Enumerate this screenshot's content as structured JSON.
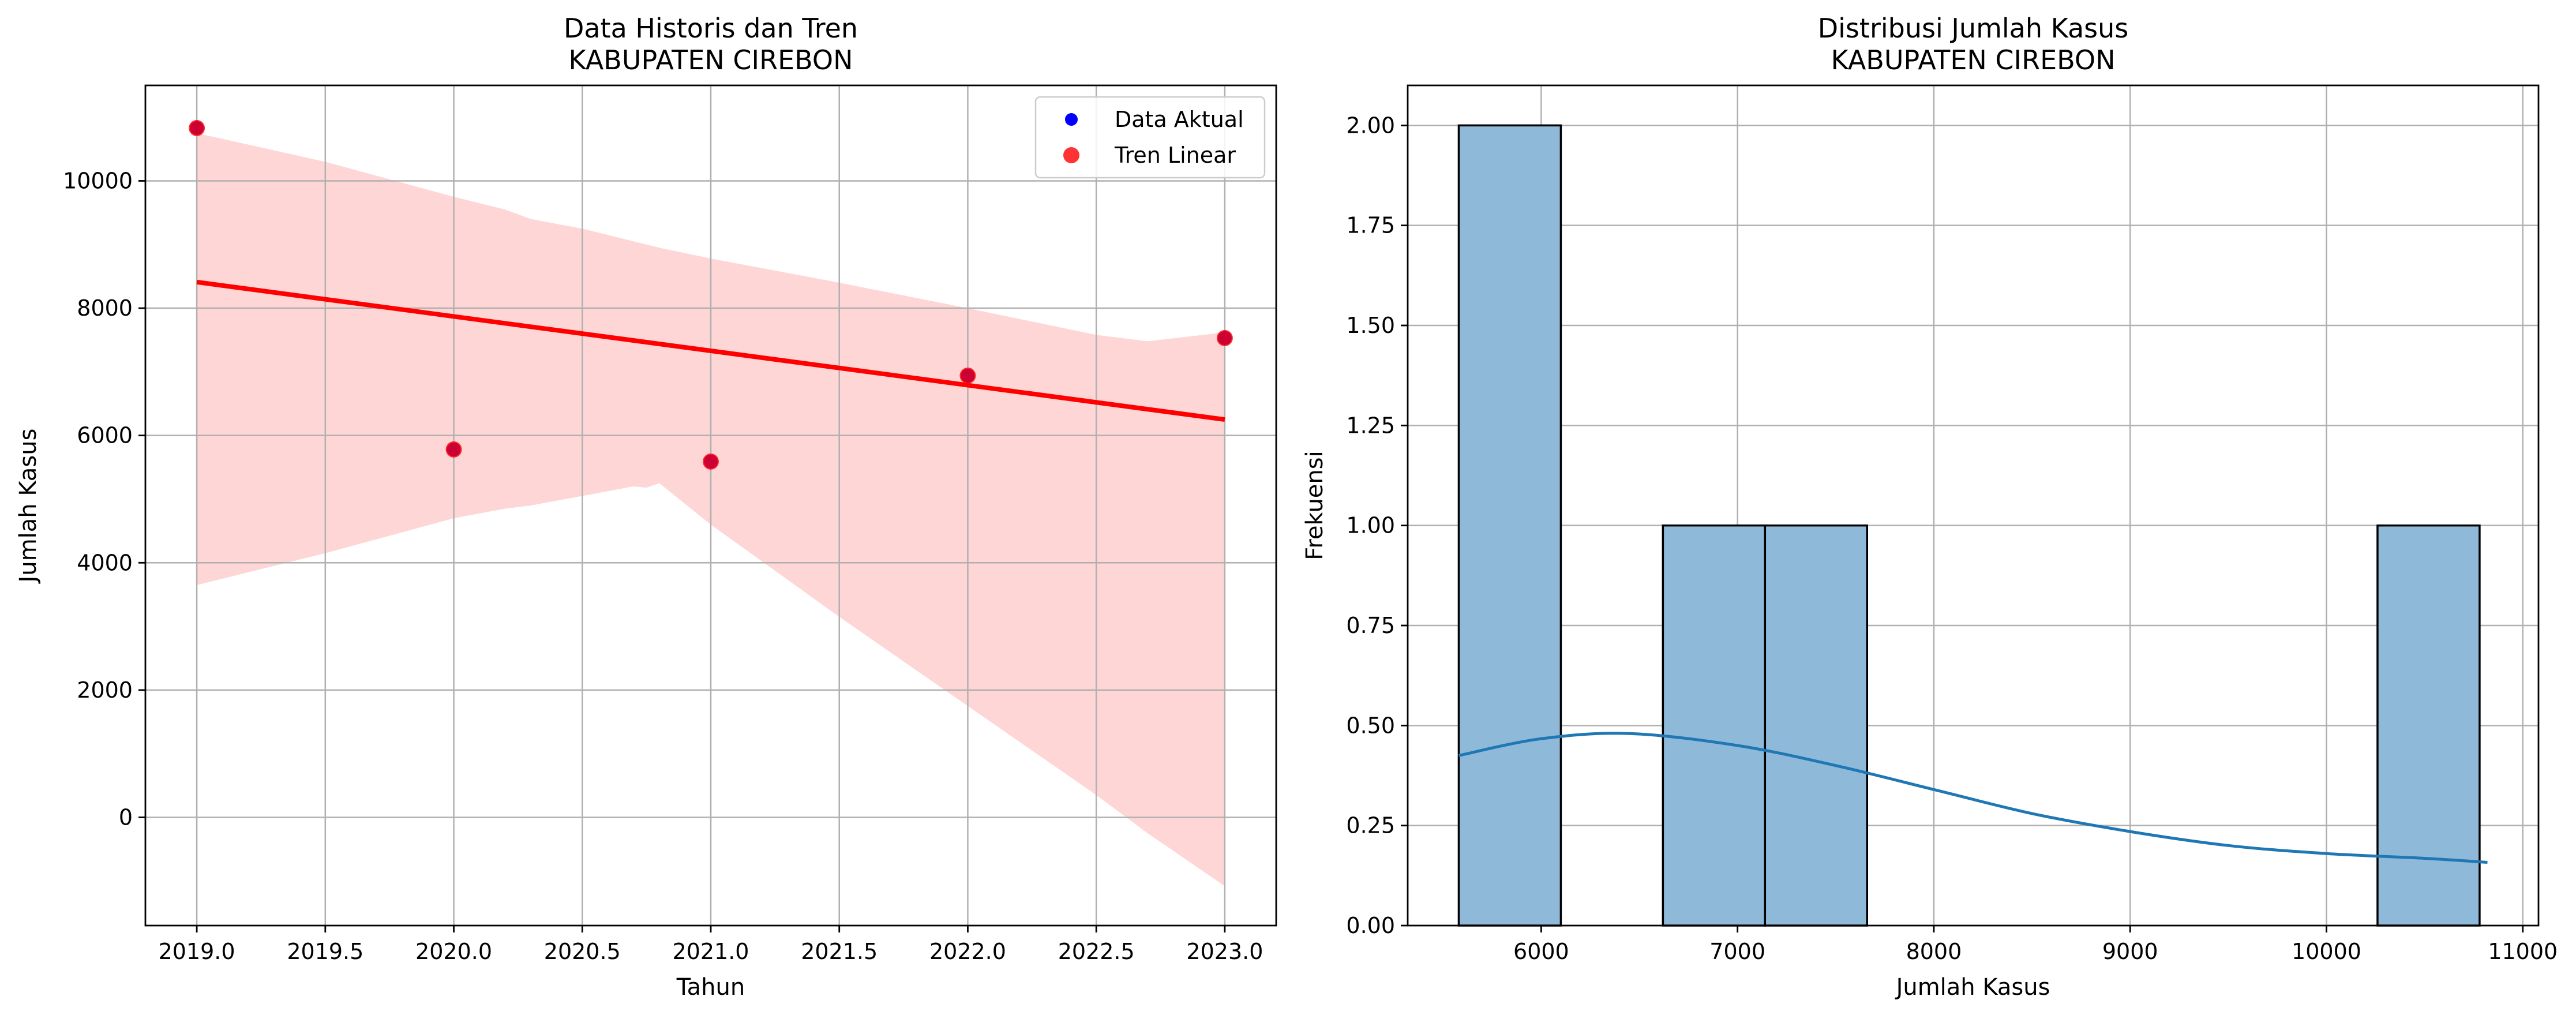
{
  "chart_data": [
    {
      "type": "scatter",
      "title": "Data Historis dan Tren",
      "subtitle": "KABUPATEN CIREBON",
      "xlabel": "Tahun",
      "ylabel": "Jumlah Kasus",
      "xlim": [
        2018.8,
        2023.2
      ],
      "ylim": [
        -1700,
        11500
      ],
      "x_ticks": [
        2019.0,
        2019.5,
        2020.0,
        2020.5,
        2021.0,
        2021.5,
        2022.0,
        2022.5,
        2023.0
      ],
      "x_tick_labels": [
        "2019.0",
        "2019.5",
        "2020.0",
        "2020.5",
        "2021.0",
        "2021.5",
        "2022.0",
        "2022.5",
        "2023.0"
      ],
      "y_ticks": [
        0,
        2000,
        4000,
        6000,
        8000,
        10000
      ],
      "y_tick_labels": [
        "0",
        "2000",
        "4000",
        "6000",
        "8000",
        "10000"
      ],
      "grid": true,
      "legend_position": "top-right",
      "series": [
        {
          "name": "Data Aktual",
          "color": "#0000ff",
          "x": [
            2019,
            2020,
            2021,
            2022,
            2023
          ],
          "y": [
            10830,
            5780,
            5590,
            6940,
            7530
          ]
        },
        {
          "name": "Tren Linear",
          "color": "#ff0000",
          "x": [
            2019,
            2020,
            2021,
            2022,
            2023
          ],
          "y": [
            10830,
            5780,
            5590,
            6940,
            7530
          ]
        }
      ],
      "trend_line": {
        "color": "#ff0000",
        "x": [
          2019,
          2023
        ],
        "y": [
          8410,
          6250
        ]
      },
      "confidence_band": {
        "color": "#ffd6d6",
        "x": [
          2019.0,
          2019.5,
          2020.0,
          2020.2,
          2020.3,
          2020.5,
          2020.7,
          2020.75,
          2020.8,
          2021.0,
          2021.5,
          2022.0,
          2022.5,
          2022.7,
          2023.0
        ],
        "upper": [
          10750,
          10300,
          9750,
          9550,
          9400,
          9250,
          9050,
          9000,
          8950,
          8780,
          8400,
          8000,
          7580,
          7480,
          7620
        ],
        "lower": [
          3650,
          4150,
          4700,
          4850,
          4900,
          5050,
          5200,
          5180,
          5250,
          4600,
          3150,
          1750,
          350,
          -250,
          -1080
        ]
      }
    },
    {
      "type": "bar",
      "title": "Distribusi Jumlah Kasus",
      "subtitle": "KABUPATEN CIREBON",
      "xlabel": "Jumlah Kasus",
      "ylabel": "Frekuensi",
      "xlim": [
        5320,
        11080
      ],
      "ylim": [
        0,
        2.1
      ],
      "x_ticks": [
        6000,
        7000,
        8000,
        9000,
        10000,
        11000
      ],
      "x_tick_labels": [
        "6000",
        "7000",
        "8000",
        "9000",
        "10000",
        "11000"
      ],
      "y_ticks": [
        0,
        0.25,
        0.5,
        0.75,
        1.0,
        1.25,
        1.5,
        1.75,
        2.0
      ],
      "y_tick_labels": [
        "0.00",
        "0.25",
        "0.50",
        "0.75",
        "1.00",
        "1.25",
        "1.50",
        "1.75",
        "2.00"
      ],
      "grid": true,
      "bin_edges": [
        5580,
        6100,
        6620,
        7140,
        7660,
        8180,
        8700,
        9220,
        9740,
        10260,
        10780
      ],
      "counts": [
        2,
        0,
        1,
        1,
        0,
        0,
        0,
        0,
        0,
        1
      ],
      "bar_color": "#8fb9d9",
      "kde": {
        "color": "#1f77b4",
        "x": [
          5580,
          6000,
          6450,
          7000,
          7500,
          8000,
          8500,
          9000,
          9500,
          10000,
          10500,
          10820
        ],
        "y": [
          0.425,
          0.467,
          0.48,
          0.45,
          0.4,
          0.34,
          0.28,
          0.235,
          0.2,
          0.18,
          0.168,
          0.158
        ]
      }
    }
  ]
}
